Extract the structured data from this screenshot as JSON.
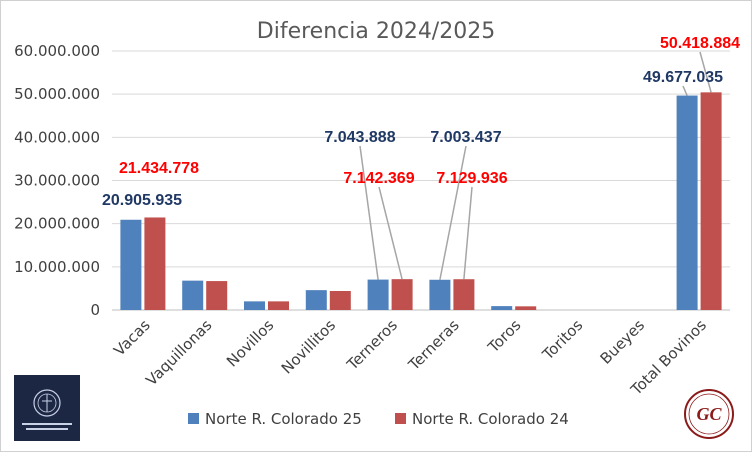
{
  "chart_data": {
    "type": "bar",
    "title": "Diferencia 2024/2025",
    "categories": [
      "Vacas",
      "Vaquillonas",
      "Novillos",
      "Novillitos",
      "Terneros",
      "Terneras",
      "Toros",
      "Toritos",
      "Bueyes",
      "Total Bovinos"
    ],
    "series": [
      {
        "name": "Norte R. Colorado 25",
        "color": "#4f81bd",
        "label_color": "#1f3864",
        "values": [
          20905935,
          6800000,
          2000000,
          4600000,
          7043888,
          7003437,
          900000,
          0,
          0,
          49677035
        ]
      },
      {
        "name": "Norte R. Colorado 24",
        "color": "#c0504d",
        "label_color": "#ff0000",
        "values": [
          21434778,
          6700000,
          2000000,
          4400000,
          7142369,
          7129936,
          850000,
          0,
          0,
          50418884
        ]
      }
    ],
    "data_labels": [
      {
        "category": "Vacas",
        "series": 0,
        "text": "20.905.935"
      },
      {
        "category": "Vacas",
        "series": 1,
        "text": "21.434.778"
      },
      {
        "category": "Terneros",
        "series": 0,
        "text": "7.043.888"
      },
      {
        "category": "Terneros",
        "series": 1,
        "text": "7.142.369"
      },
      {
        "category": "Terneras",
        "series": 0,
        "text": "7.003.437"
      },
      {
        "category": "Terneras",
        "series": 1,
        "text": "7.129.936"
      },
      {
        "category": "Total Bovinos",
        "series": 0,
        "text": "49.677.035"
      },
      {
        "category": "Total Bovinos",
        "series": 1,
        "text": "50.418.884"
      }
    ],
    "y_ticks": [
      "0",
      "10.000.000",
      "20.000.000",
      "30.000.000",
      "40.000.000",
      "50.000.000",
      "60.000.000"
    ],
    "ylim": [
      0,
      60000000
    ],
    "grid": true,
    "legend_position": "bottom"
  },
  "logos": {
    "left": "secretaria-agricultura-seal",
    "right_text": "GC"
  }
}
